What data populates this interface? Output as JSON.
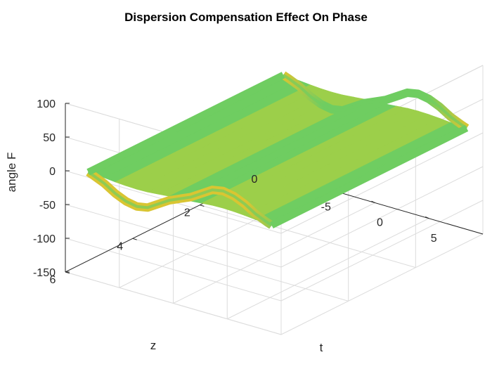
{
  "chart_data": {
    "type": "surface",
    "title": "Dispersion Compensation Effect On Phase",
    "xlabel": "t",
    "ylabel": "z",
    "zlabel": "angle F",
    "xlim": [
      -10,
      10
    ],
    "ylim": [
      0,
      6
    ],
    "zlim": [
      -150,
      100
    ],
    "xticks": [
      -5,
      0,
      5
    ],
    "yticks": [
      0,
      2,
      4,
      6
    ],
    "zticks": [
      100,
      50,
      0,
      -50,
      -100,
      -150
    ],
    "grid": true,
    "colormap": "parula",
    "surface_extent": {
      "t": [
        -8.5,
        8.5
      ],
      "z": [
        0,
        5.8
      ]
    },
    "phase_profile": {
      "t": [
        -8.5,
        -8,
        -7,
        -6,
        -5,
        -4,
        -3,
        -2,
        -1,
        0,
        1,
        2,
        3,
        4,
        5,
        6,
        7,
        8,
        8.5
      ],
      "angle_F": [
        0,
        -3,
        -10,
        -20,
        -27,
        -30,
        -27,
        -17,
        -7,
        0,
        7,
        17,
        27,
        30,
        27,
        20,
        10,
        3,
        0
      ]
    },
    "colors": {
      "surface_center": "#6fcd61",
      "surface_edge": "#d9c532",
      "axes": "#262626",
      "grid": "#dcdcdc"
    }
  }
}
